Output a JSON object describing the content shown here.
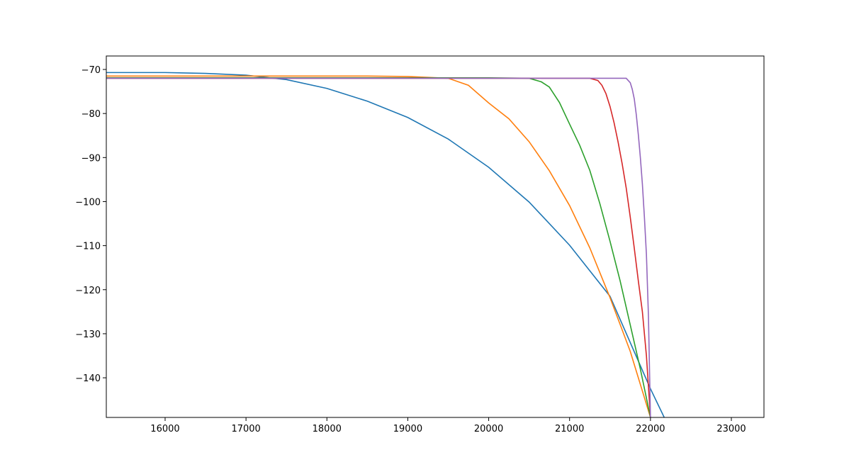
{
  "chart_data": {
    "type": "line",
    "xlim": [
      15273,
      23403
    ],
    "ylim": [
      -149,
      -66.94
    ],
    "xticks": [
      16000,
      17000,
      18000,
      19000,
      20000,
      21000,
      22000,
      23000
    ],
    "yticks": [
      {
        "value": -140,
        "label": "−140"
      },
      {
        "value": -130,
        "label": "−130"
      },
      {
        "value": -120,
        "label": "−120"
      },
      {
        "value": -110,
        "label": "−110"
      },
      {
        "value": -100,
        "label": "−100"
      },
      {
        "value": -90,
        "label": "−90"
      },
      {
        "value": -80,
        "label": "−80"
      },
      {
        "value": -70,
        "label": "−70"
      }
    ],
    "series": [
      {
        "color": "#1f77b4",
        "x": [
          15273,
          16000,
          16500,
          17000,
          17500,
          18000,
          18500,
          19000,
          19500,
          20000,
          20500,
          21000,
          21500,
          22000,
          22170
        ],
        "values": [
          -70.7,
          -70.7,
          -70.9,
          -71.3,
          -72.3,
          -74.3,
          -77.2,
          -80.9,
          -85.8,
          -92.2,
          -100.1,
          -109.9,
          -121.5,
          -142.5,
          -149
        ]
      },
      {
        "color": "#ff7f0e",
        "x": [
          15273,
          16000,
          17000,
          18000,
          18500,
          19000,
          19500,
          19750,
          20000,
          20250,
          20500,
          20750,
          21000,
          21250,
          21500,
          21750,
          22000
        ],
        "values": [
          -71.5,
          -71.5,
          -71.5,
          -71.5,
          -71.5,
          -71.6,
          -72.0,
          -73.6,
          -77.6,
          -81.2,
          -86.4,
          -93.0,
          -100.9,
          -110.5,
          -121.8,
          -134,
          -149
        ]
      },
      {
        "color": "#2ca02c",
        "x": [
          15273,
          17000,
          19000,
          20000,
          20500,
          20650,
          20750,
          20875,
          21000,
          21125,
          21250,
          21375,
          21500,
          21625,
          21750,
          21875,
          22000
        ],
        "values": [
          -71.9,
          -71.9,
          -71.9,
          -71.9,
          -72.0,
          -72.8,
          -74.0,
          -77.5,
          -82.4,
          -87.2,
          -92.9,
          -100.5,
          -109,
          -118,
          -128,
          -138,
          -149
        ]
      },
      {
        "color": "#d62728",
        "x": [
          15273,
          18000,
          21000,
          21250,
          21350,
          21400,
          21450,
          21500,
          21550,
          21600,
          21650,
          21700,
          21750,
          21800,
          21850,
          21900,
          21950,
          22000
        ],
        "values": [
          -72,
          -72,
          -72,
          -72,
          -72.5,
          -73.6,
          -75.5,
          -78.4,
          -82.1,
          -86.5,
          -91.4,
          -96.9,
          -103.5,
          -110.6,
          -118,
          -125,
          -135,
          -149
        ]
      },
      {
        "color": "#9467bd",
        "x": [
          15273,
          18000,
          21000,
          21700,
          21750,
          21775,
          21800,
          21825,
          21850,
          21875,
          21900,
          21925,
          21950,
          21975,
          22000
        ],
        "values": [
          -72,
          -72,
          -72,
          -72,
          -73,
          -74.5,
          -76.7,
          -80.3,
          -84.8,
          -90,
          -96,
          -103.5,
          -112,
          -126,
          -149
        ]
      }
    ]
  }
}
